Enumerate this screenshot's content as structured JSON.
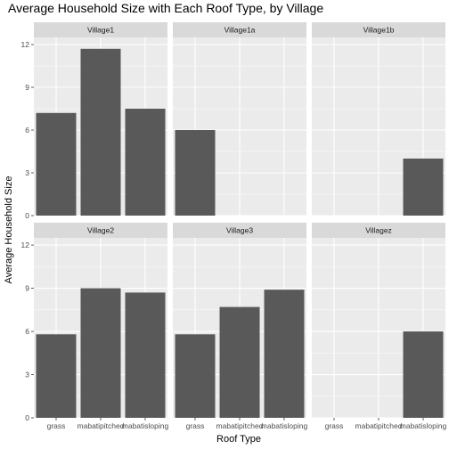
{
  "chart_data": {
    "type": "bar",
    "title": "Average Household Size with Each Roof Type, by Village",
    "xlabel": "Roof Type",
    "ylabel": "Average Household Size",
    "categories": [
      "grass",
      "mabatipitched",
      "mabatisloping"
    ],
    "ylim": [
      0,
      12.5
    ],
    "yticks": [
      0,
      3,
      6,
      9,
      12
    ],
    "grid": true,
    "bar_color": "#595959",
    "panel_background": "#ebebeb",
    "strip_background": "#d9d9d9",
    "panels": [
      {
        "name": "Village1",
        "values": [
          7.2,
          11.7,
          7.5
        ]
      },
      {
        "name": "Village1a",
        "values": [
          6.0,
          null,
          null
        ]
      },
      {
        "name": "Village1b",
        "values": [
          null,
          null,
          4.0
        ]
      },
      {
        "name": "Village2",
        "values": [
          5.8,
          9.0,
          8.7
        ]
      },
      {
        "name": "Village3",
        "values": [
          5.8,
          7.7,
          8.9
        ]
      },
      {
        "name": "Villagez",
        "values": [
          null,
          null,
          6.0
        ]
      }
    ]
  }
}
